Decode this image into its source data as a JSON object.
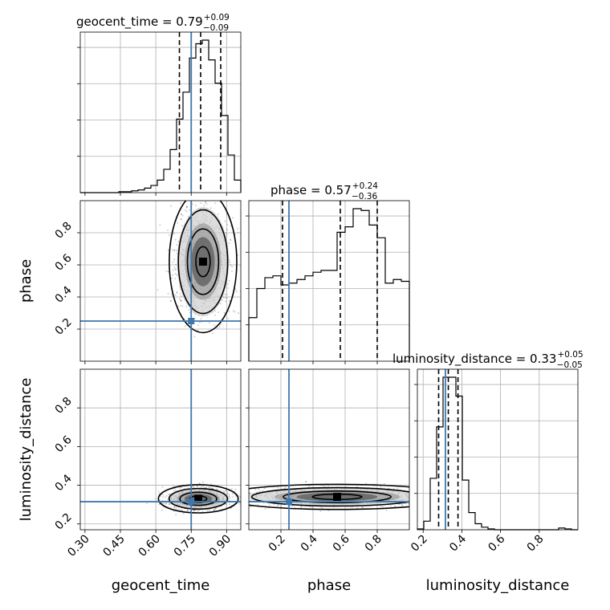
{
  "chart_data": {
    "type": "corner",
    "parameters": [
      "geocent_time",
      "phase",
      "luminosity_distance"
    ],
    "truth_color": "#3e77b0",
    "titles": [
      {
        "name": "geocent_time = 0.79",
        "plus": "+0.09",
        "minus": "−0.09"
      },
      {
        "name": "phase = 0.57",
        "plus": "+0.24",
        "minus": "−0.36"
      },
      {
        "name": "luminosity_distance = 0.33",
        "plus": "+0.05",
        "minus": "−0.05"
      }
    ],
    "axis_labels": {
      "x": [
        "geocent_time",
        "phase",
        "luminosity_distance"
      ],
      "y": [
        "phase",
        "luminosity_distance"
      ]
    },
    "ranges": {
      "geocent_time": [
        0.28,
        0.96
      ],
      "phase": [
        0.0,
        1.0
      ],
      "luminosity_distance": [
        0.17,
        1.0
      ]
    },
    "ticks": {
      "geocent_time": [
        "0.30",
        "0.45",
        "0.60",
        "0.75",
        "0.90"
      ],
      "phase": [
        "0.2",
        "0.4",
        "0.6",
        "0.8"
      ],
      "luminosity_distance": [
        "0.2",
        "0.4",
        "0.6",
        "0.8"
      ]
    },
    "truths": {
      "geocent_time": 0.75,
      "phase": 0.25,
      "luminosity_distance": 0.315
    },
    "quantiles": {
      "geocent_time": [
        0.7,
        0.79,
        0.875
      ],
      "phase": [
        0.21,
        0.57,
        0.8
      ],
      "luminosity_distance": [
        0.28,
        0.33,
        0.38
      ]
    },
    "histograms": {
      "geocent_time": {
        "range": [
          0.28,
          0.96
        ],
        "counts": [
          0,
          0,
          0,
          0,
          0,
          0,
          1,
          1,
          2,
          3,
          5,
          8,
          14,
          26,
          48,
          82,
          112,
          150,
          166,
          170,
          148,
          122,
          86,
          42,
          14
        ]
      },
      "phase": {
        "range": [
          0.0,
          1.0
        ],
        "counts": [
          48,
          80,
          92,
          94,
          84,
          86,
          90,
          94,
          98,
          100,
          100,
          142,
          148,
          168,
          166,
          150,
          136,
          86,
          90,
          88
        ]
      },
      "luminosity_distance": {
        "range": [
          0.17,
          1.0
        ],
        "counts": [
          1,
          10,
          60,
          120,
          178,
          178,
          156,
          58,
          20,
          7,
          3,
          1,
          0,
          0,
          0,
          0,
          0,
          0,
          0,
          0,
          0,
          0,
          2,
          1,
          0
        ]
      }
    }
  }
}
